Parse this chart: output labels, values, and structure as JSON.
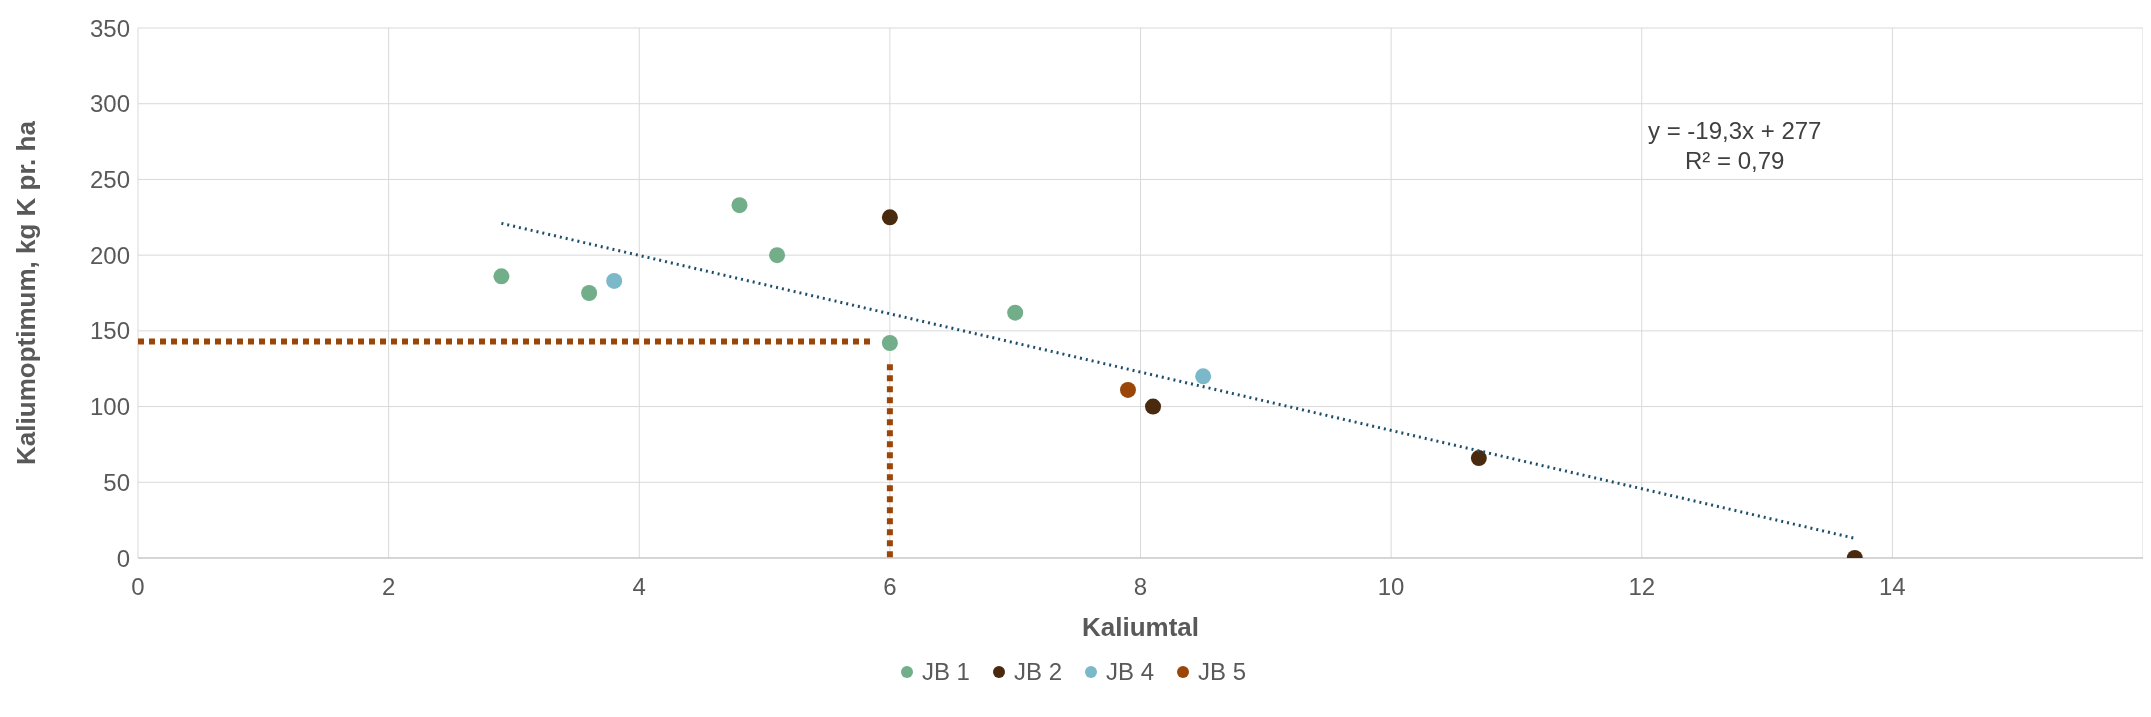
{
  "chart_data": {
    "type": "scatter",
    "xlabel": "Kaliumtal",
    "ylabel": "Kaliumoptimum, kg K pr. ha",
    "xlim": [
      0,
      16
    ],
    "xticks": [
      0,
      2,
      4,
      6,
      8,
      10,
      12,
      14
    ],
    "ylim": [
      0,
      350
    ],
    "yticks": [
      0,
      50,
      100,
      150,
      200,
      250,
      300,
      350
    ],
    "grid": true,
    "legend": "bottom",
    "marker": "circle",
    "annotations": [
      "y = -19,3x + 277",
      "R² = 0,79"
    ],
    "series": [
      {
        "name": "JB 1",
        "color": "#72ae89",
        "x": [
          2.9,
          3.6,
          4.8,
          5.1,
          6,
          7
        ],
        "values": [
          186,
          175,
          233,
          200,
          142,
          162
        ]
      },
      {
        "name": "JB 2",
        "color": "#4a2a0e",
        "x": [
          6,
          8.1,
          10.7,
          13.7
        ],
        "values": [
          225,
          100,
          66,
          0
        ]
      },
      {
        "name": "JB 4",
        "color": "#7bb8c9",
        "x": [
          3.8,
          8.5
        ],
        "values": [
          183,
          120
        ]
      },
      {
        "name": "JB 5",
        "color": "#9a4608",
        "x": [
          7.9
        ],
        "values": [
          111
        ]
      },
      {
        "type": "line",
        "marker": "none",
        "color": "#1f4e6b",
        "line_style": "dotted",
        "x": [
          2.9,
          13.7
        ],
        "values": [
          221,
          13
        ]
      },
      {
        "type": "line",
        "marker": "none",
        "color": "#9a4608",
        "line_style": "dashed",
        "x": [
          0,
          5.85
        ],
        "values": [
          143,
          143
        ]
      },
      {
        "type": "line",
        "marker": "none",
        "color": "#9a4608",
        "line_style": "dashed",
        "x": [
          6,
          6
        ],
        "values": [
          128,
          0
        ]
      }
    ]
  }
}
